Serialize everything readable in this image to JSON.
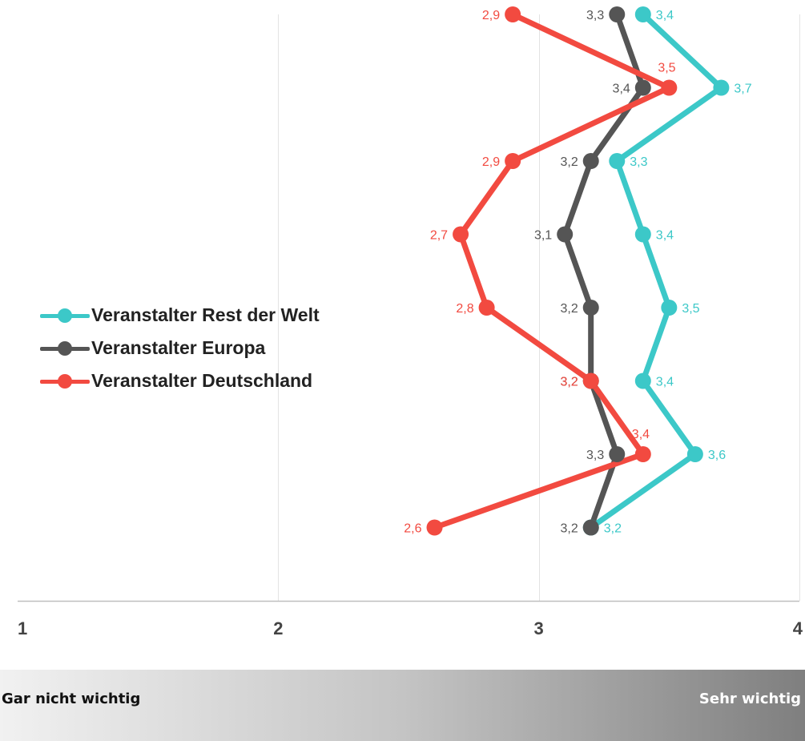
{
  "chart_data": {
    "type": "line",
    "orientation": "horizontal",
    "xlim": [
      1,
      4
    ],
    "x_ticks": [
      "1",
      "2",
      "3",
      "4"
    ],
    "grid": true,
    "legend_placement": "left",
    "series": [
      {
        "name": "Veranstalter Rest der Welt",
        "color": "#3cc8c8",
        "values": [
          3.4,
          3.7,
          3.3,
          3.4,
          3.5,
          3.4,
          3.6,
          3.2
        ],
        "labels": [
          "3,4",
          "3,7",
          "3,3",
          "3,4",
          "3,5",
          "3,4",
          "3,6",
          "3,2"
        ]
      },
      {
        "name": "Veranstalter Europa",
        "color": "#555555",
        "values": [
          3.3,
          3.4,
          3.2,
          3.1,
          3.2,
          3.2,
          3.3,
          3.2
        ],
        "labels": [
          "3,3",
          "3,4",
          "3,2",
          "3,1",
          "3,2",
          "3,2",
          "3,3",
          "3,2"
        ]
      },
      {
        "name": "Veranstalter Deutschland",
        "color": "#f24a40",
        "values": [
          2.9,
          3.5,
          2.9,
          2.7,
          2.8,
          3.2,
          3.4,
          2.6
        ],
        "labels": [
          "2,9",
          "3,5",
          "2,9",
          "2,7",
          "2,8",
          "3,2",
          "3,4",
          "2,6"
        ]
      }
    ]
  },
  "scale": {
    "left_label": "Gar nicht wichtig",
    "right_label": "Sehr wichtig"
  }
}
